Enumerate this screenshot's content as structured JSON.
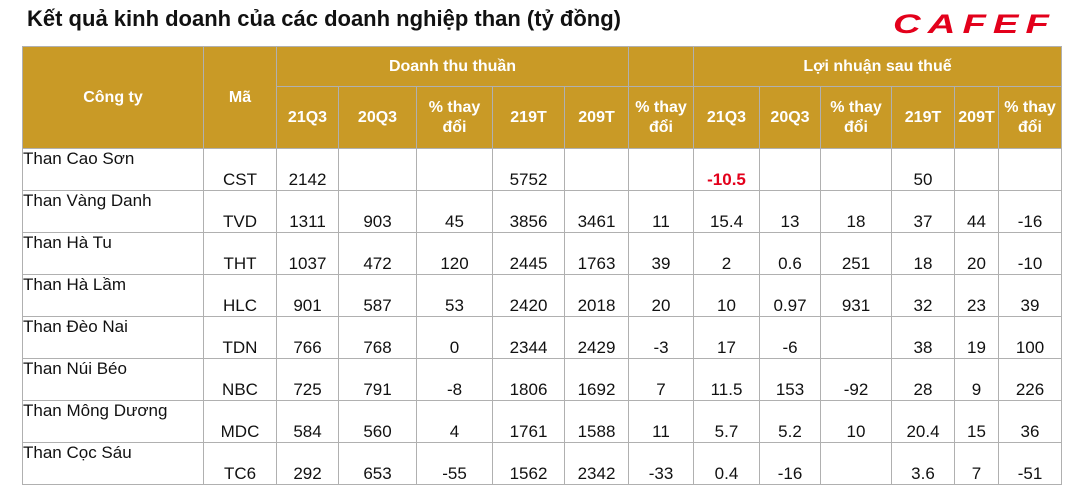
{
  "title": "Kết quả kinh doanh của các doanh nghiệp than (tỷ đồng)",
  "logo": "CAFEF",
  "colors": {
    "header_bg": "#c99a26",
    "header_text": "#ffffff",
    "logo_red": "#e3001b",
    "highlight_negative": "#e3001b"
  },
  "header": {
    "company": "Công ty",
    "code": "Mã",
    "revenue_group": "Doanh thu thuần",
    "profit_group": "Lợi nhuận sau thuế",
    "revenue_cols": [
      "21Q3",
      "20Q3",
      "% thay đổi",
      "219T",
      "209T",
      "% thay đổi"
    ],
    "profit_cols": [
      "21Q3",
      "20Q3",
      "% thay đổi",
      "219T",
      "209T",
      "% thay đổi"
    ]
  },
  "rows": [
    {
      "name": "Than Cao Sơn",
      "code": "CST",
      "values": [
        "2142",
        "",
        "",
        "5752",
        "",
        "",
        "-10.5",
        "",
        "",
        "50",
        "",
        ""
      ]
    },
    {
      "name": "Than Vàng Danh",
      "code": "TVD",
      "values": [
        "1311",
        "903",
        "45",
        "3856",
        "3461",
        "11",
        "15.4",
        "13",
        "18",
        "37",
        "44",
        "-16"
      ]
    },
    {
      "name": "Than Hà Tu",
      "code": "THT",
      "values": [
        "1037",
        "472",
        "120",
        "2445",
        "1763",
        "39",
        "2",
        "0.6",
        "251",
        "18",
        "20",
        "-10"
      ]
    },
    {
      "name": "Than Hà Lầm",
      "code": "HLC",
      "values": [
        "901",
        "587",
        "53",
        "2420",
        "2018",
        "20",
        "10",
        "0.97",
        "931",
        "32",
        "23",
        "39"
      ]
    },
    {
      "name": "Than Đèo Nai",
      "code": "TDN",
      "values": [
        "766",
        "768",
        "0",
        "2344",
        "2429",
        "-3",
        "17",
        "-6",
        "",
        "38",
        "19",
        "100"
      ]
    },
    {
      "name": "Than Núi Béo",
      "code": "NBC",
      "values": [
        "725",
        "791",
        "-8",
        "1806",
        "1692",
        "7",
        "11.5",
        "153",
        "-92",
        "28",
        "9",
        "226"
      ]
    },
    {
      "name": "Than Mông Dương",
      "code": "MDC",
      "values": [
        "584",
        "560",
        "4",
        "1761",
        "1588",
        "11",
        "5.7",
        "5.2",
        "10",
        "20.4",
        "15",
        "36"
      ]
    },
    {
      "name": "Than Cọc Sáu",
      "code": "TC6",
      "values": [
        "292",
        "653",
        "-55",
        "1562",
        "2342",
        "-33",
        "0.4",
        "-16",
        "",
        "3.6",
        "7",
        "-51"
      ]
    }
  ],
  "chart_data": {
    "type": "table",
    "title": "Kết quả kinh doanh của các doanh nghiệp than (tỷ đồng)",
    "column_groups": [
      {
        "name": "Doanh thu thuần",
        "columns": [
          "21Q3",
          "20Q3",
          "% thay đổi",
          "219T",
          "209T",
          "% thay đổi"
        ]
      },
      {
        "name": "Lợi nhuận sau thuế",
        "columns": [
          "21Q3",
          "20Q3",
          "% thay đổi",
          "219T",
          "209T",
          "% thay đổi"
        ]
      }
    ],
    "index_columns": [
      "Công ty",
      "Mã"
    ],
    "rows": [
      [
        "Than Cao Sơn",
        "CST",
        2142,
        null,
        null,
        5752,
        null,
        null,
        -10.5,
        null,
        null,
        50,
        null,
        null
      ],
      [
        "Than Vàng Danh",
        "TVD",
        1311,
        903,
        45,
        3856,
        3461,
        11,
        15.4,
        13,
        18,
        37,
        44,
        -16
      ],
      [
        "Than Hà Tu",
        "THT",
        1037,
        472,
        120,
        2445,
        1763,
        39,
        2,
        0.6,
        251,
        18,
        20,
        -10
      ],
      [
        "Than Hà Lầm",
        "HLC",
        901,
        587,
        53,
        2420,
        2018,
        20,
        10,
        0.97,
        931,
        32,
        23,
        39
      ],
      [
        "Than Đèo Nai",
        "TDN",
        766,
        768,
        0,
        2344,
        2429,
        -3,
        17,
        -6,
        null,
        38,
        19,
        100
      ],
      [
        "Than Núi Béo",
        "NBC",
        725,
        791,
        -8,
        1806,
        1692,
        7,
        11.5,
        153,
        -92,
        28,
        9,
        226
      ],
      [
        "Than Mông Dương",
        "MDC",
        584,
        560,
        4,
        1761,
        1588,
        11,
        5.7,
        5.2,
        10,
        20.4,
        15,
        36
      ],
      [
        "Than Cọc Sáu",
        "TC6",
        292,
        653,
        -55,
        1562,
        2342,
        -33,
        0.4,
        -16,
        null,
        3.6,
        7,
        -51
      ]
    ]
  }
}
